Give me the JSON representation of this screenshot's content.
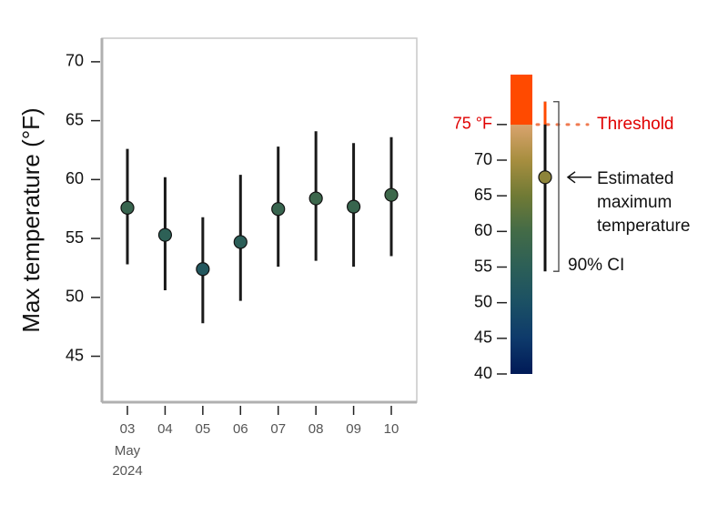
{
  "chart_data": {
    "type": "errorbar",
    "y_label": "Max temperature (°F)",
    "categories": [
      "03",
      "04",
      "05",
      "06",
      "07",
      "08",
      "09",
      "10"
    ],
    "x_sublabels": [
      "May",
      "2024"
    ],
    "series": [
      {
        "values": [
          57.6,
          55.3,
          52.4,
          54.7,
          57.5,
          58.4,
          57.7,
          58.7
        ],
        "lower": [
          52.8,
          50.6,
          47.8,
          49.7,
          52.6,
          53.1,
          52.6,
          53.5
        ],
        "upper": [
          62.6,
          60.2,
          56.8,
          60.4,
          62.8,
          64.1,
          63.1,
          63.6
        ]
      }
    ],
    "ylim": [
      41.1,
      72
    ],
    "yticks": [
      45,
      50,
      55,
      60,
      65,
      70
    ],
    "colorscale": [
      [
        40,
        "#001a57"
      ],
      [
        45,
        "#0e3a6b"
      ],
      [
        50,
        "#1b5064"
      ],
      [
        55,
        "#2c5f57"
      ],
      [
        60,
        "#436b47"
      ],
      [
        65,
        "#707a35"
      ],
      [
        70,
        "#a78e3f"
      ],
      [
        75,
        "#d9a36e"
      ],
      [
        75.01,
        "#ff4a00"
      ],
      [
        82,
        "#ff4a00"
      ]
    ],
    "legend": {
      "colorbar_lim": [
        40,
        82
      ],
      "ticks": [
        40,
        45,
        50,
        55,
        60,
        65,
        70,
        {
          "value": 75,
          "label": "75 °F"
        }
      ],
      "threshold": 75,
      "threshold_label": "Threshold",
      "example_value": 67.6,
      "example_ci": [
        54.4,
        78.2
      ],
      "estimate_label": [
        "Estimated",
        "maximum",
        "temperature"
      ],
      "ci_label": "90% CI"
    }
  }
}
